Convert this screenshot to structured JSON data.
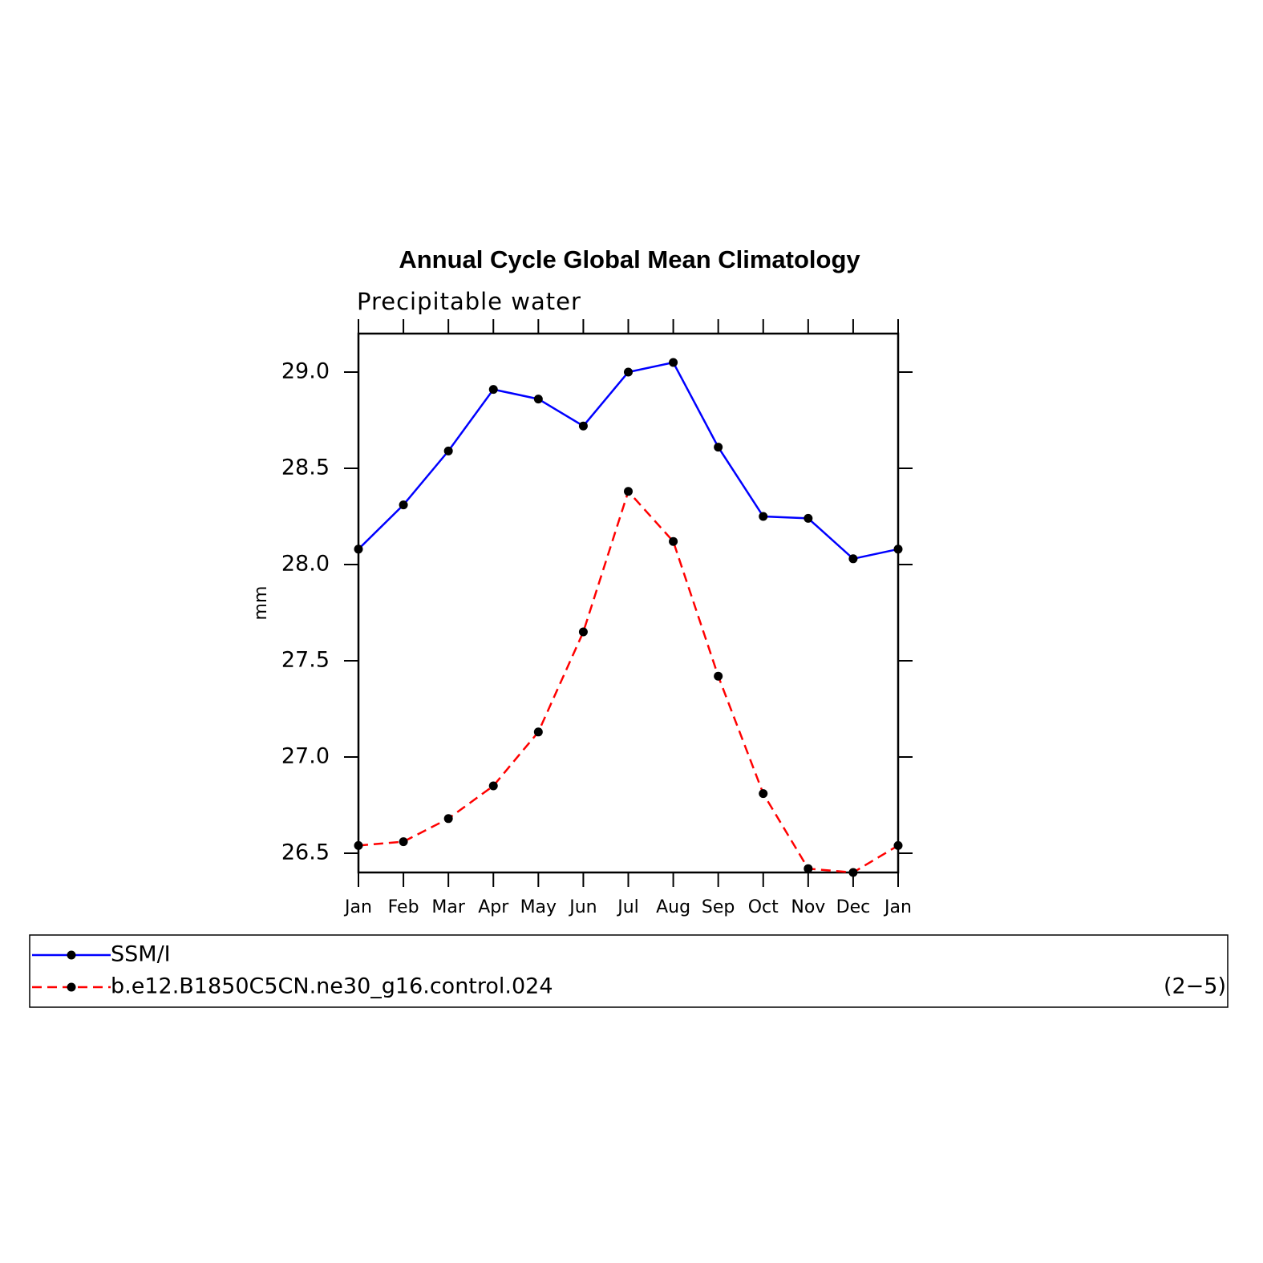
{
  "chart_data": {
    "type": "line",
    "title": "Annual Cycle Global Mean Climatology",
    "subtitle": "Precipitable water",
    "y_label": "mm",
    "annotation": "(2−5)",
    "categories": [
      "Jan",
      "Feb",
      "Mar",
      "Apr",
      "May",
      "Jun",
      "Jul",
      "Aug",
      "Sep",
      "Oct",
      "Nov",
      "Dec",
      "Jan"
    ],
    "series": [
      {
        "name": "SSM/I",
        "color": "#0000ff",
        "line_style": "solid",
        "marker_color": "#000000",
        "values": [
          28.08,
          28.31,
          28.59,
          28.91,
          28.86,
          28.72,
          29.0,
          29.05,
          28.61,
          28.25,
          28.24,
          28.03,
          28.08
        ]
      },
      {
        "name": "b.e12.B1850C5CN.ne30_g16.control.024",
        "color": "#ff0000",
        "line_style": "dashed",
        "marker_color": "#000000",
        "values": [
          26.54,
          26.56,
          26.68,
          26.85,
          27.13,
          27.65,
          28.38,
          28.12,
          27.42,
          26.81,
          26.42,
          26.4,
          26.54
        ]
      }
    ],
    "ylim": [
      26.4,
      29.2
    ],
    "yticks": [
      {
        "value": 26.5,
        "label": "26.5"
      },
      {
        "value": 27,
        "label": "27.0"
      },
      {
        "value": 27.5,
        "label": "27.5"
      },
      {
        "value": 28,
        "label": "28.0"
      },
      {
        "value": 28.5,
        "label": "28.5"
      },
      {
        "value": 29,
        "label": "29.0"
      }
    ]
  }
}
